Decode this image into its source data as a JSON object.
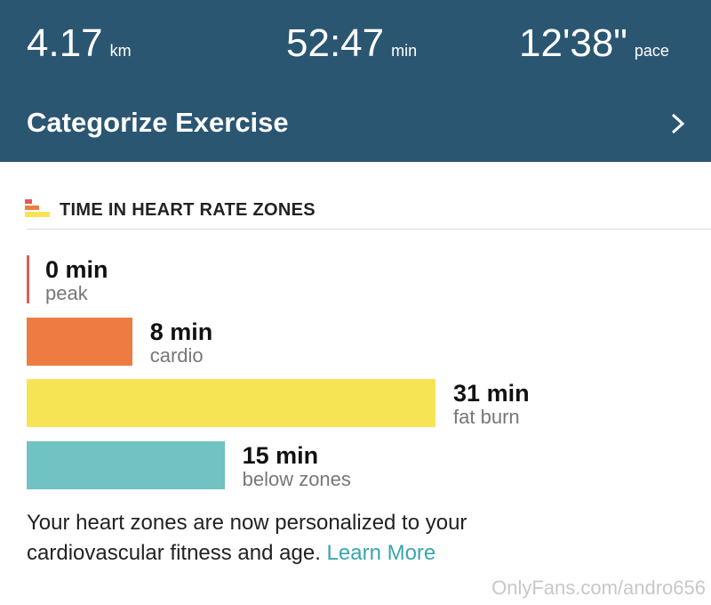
{
  "header": {
    "stats": [
      {
        "value": "4.17",
        "unit": "km"
      },
      {
        "value": "52:47",
        "unit": "min"
      },
      {
        "value": "12'38\"",
        "unit": "pace"
      }
    ],
    "action": "Categorize Exercise"
  },
  "zones": {
    "title": "TIME IN HEART RATE ZONES",
    "items": [
      {
        "minutes": 0,
        "label": "0 min",
        "name": "peak",
        "color": "#e05a5a"
      },
      {
        "minutes": 8,
        "label": "8 min",
        "name": "cardio",
        "color": "#ee7c42"
      },
      {
        "minutes": 31,
        "label": "31 min",
        "name": "fat burn",
        "color": "#f6e455"
      },
      {
        "minutes": 15,
        "label": "15 min",
        "name": "below zones",
        "color": "#71c2c2"
      }
    ]
  },
  "note": {
    "lines": [
      "Your heart zones are now personalized to your",
      "cardiovascular fitness and age."
    ],
    "link": "Learn More"
  },
  "watermark": "OnlyFans.com/andro656"
}
